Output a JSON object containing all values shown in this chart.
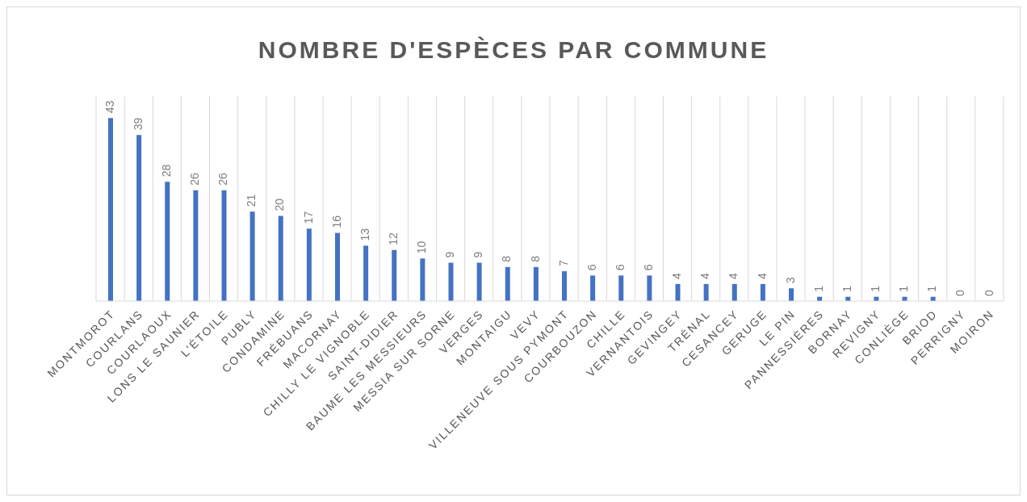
{
  "chart_data": {
    "type": "bar",
    "title": "NOMBRE D'ESPÈCES PAR COMMUNE",
    "categories": [
      "MONTMOROT",
      "COURLANS",
      "COURLAOUX",
      "LONS LE SAUNIER",
      "L'ÉTOILE",
      "PUBLY",
      "CONDAMINE",
      "FRÉBUANS",
      "MACORNAY",
      "CHILLY LE VIGNOBLE",
      "SAINT-DIDIER",
      "BAUME LES MESSIEURS",
      "MESSIA SUR SORNE",
      "VERGES",
      "MONTAIGU",
      "VEVY",
      "VILLENEUVE SOUS PYMONT",
      "COURBOUZON",
      "CHILLE",
      "VERNANTOIS",
      "GEVINGEY",
      "TRÉNAL",
      "CESANCEY",
      "GERUGE",
      "LE PIN",
      "PANNESSIÈRES",
      "BORNAY",
      "REVIGNY",
      "CONLIÈGE",
      "BRIOD",
      "PERRIGNY",
      "MOIRON"
    ],
    "values": [
      43,
      39,
      28,
      26,
      26,
      21,
      20,
      17,
      16,
      13,
      12,
      10,
      9,
      9,
      8,
      8,
      7,
      6,
      6,
      6,
      4,
      4,
      4,
      4,
      3,
      1,
      1,
      1,
      1,
      1,
      0,
      0
    ],
    "color": "#4472c4",
    "data_labels": true,
    "grid": "x"
  }
}
